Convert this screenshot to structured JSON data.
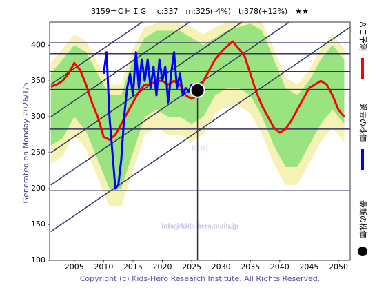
{
  "chart_data": {
    "type": "line",
    "title": "3159=ＣＨＩＧ　 c:337　m:325(-4%)　t:378(+12%)　★★",
    "side_label": "Generated on Monday 2026/1/5.",
    "watermarks": [
      "KIRI",
      "info@kids-hero.main.jp"
    ],
    "copyright": "Copyright (c) Kids-Hero Research Institute. All Rights Reserved.",
    "xlim": [
      2000.8,
      2052
    ],
    "ylim": [
      100,
      432
    ],
    "xticks": [
      2005,
      2010,
      2015,
      2020,
      2025,
      2030,
      2035,
      2040,
      2045,
      2050
    ],
    "yticks": [
      100,
      150,
      200,
      250,
      300,
      350,
      400
    ],
    "grid": false,
    "hlines": [
      403,
      388,
      363,
      338,
      283,
      197
    ],
    "trend_lines": [
      {
        "x": [
          2001,
          2052
        ],
        "y": [
          140,
          425
        ]
      },
      {
        "x": [
          2001,
          2052
        ],
        "y": [
          205,
          490
        ]
      },
      {
        "x": [
          2001,
          2052
        ],
        "y": [
          250,
          535
        ]
      },
      {
        "x": [
          2001,
          2052
        ],
        "y": [
          300,
          585
        ]
      },
      {
        "x": [
          2001,
          2052
        ],
        "y": [
          345,
          630
        ]
      }
    ],
    "bands": [
      {
        "color": "#f5f0a8",
        "x": [
          2001,
          2003,
          2005,
          2007,
          2009,
          2011,
          2013,
          2015,
          2017,
          2019,
          2021,
          2023,
          2025,
          2027,
          2029,
          2031,
          2033,
          2035,
          2037,
          2039,
          2041,
          2043,
          2045,
          2047,
          2049,
          2051
        ],
        "upper": [
          375,
          395,
          415,
          405,
          375,
          345,
          345,
          395,
          425,
          430,
          430,
          430,
          425,
          415,
          425,
          432,
          432,
          432,
          432,
          395,
          355,
          345,
          365,
          395,
          415,
          395
        ],
        "lower": [
          235,
          245,
          275,
          255,
          215,
          175,
          175,
          225,
          275,
          285,
          275,
          275,
          265,
          275,
          305,
          315,
          315,
          305,
          275,
          235,
          205,
          205,
          235,
          265,
          285,
          265
        ]
      },
      {
        "color": "#88e078",
        "x": [
          2001,
          2003,
          2005,
          2007,
          2009,
          2011,
          2013,
          2015,
          2017,
          2019,
          2021,
          2023,
          2025,
          2027,
          2029,
          2031,
          2033,
          2035,
          2037,
          2039,
          2041,
          2043,
          2045,
          2047,
          2049,
          2051
        ],
        "upper": [
          360,
          380,
          400,
          390,
          360,
          330,
          330,
          380,
          410,
          420,
          420,
          420,
          410,
          400,
          410,
          420,
          425,
          430,
          420,
          380,
          340,
          330,
          350,
          380,
          400,
          380
        ],
        "lower": [
          260,
          270,
          300,
          280,
          240,
          200,
          200,
          250,
          300,
          310,
          300,
          300,
          290,
          300,
          330,
          340,
          340,
          330,
          300,
          260,
          230,
          230,
          260,
          290,
          310,
          290
        ]
      }
    ],
    "series": [
      {
        "name": "ＡＩ予測",
        "color": "#ff0000",
        "style": "line",
        "x": [
          2001,
          2002,
          2003,
          2004,
          2005,
          2006,
          2007,
          2008,
          2009,
          2010,
          2011,
          2012,
          2013,
          2014,
          2015,
          2016,
          2017,
          2018,
          2019,
          2020,
          2021,
          2022,
          2023,
          2024,
          2025,
          2026,
          2027,
          2028,
          2029,
          2030,
          2031,
          2032,
          2033,
          2034,
          2035,
          2036,
          2037,
          2038,
          2039,
          2040,
          2041,
          2042,
          2043,
          2044,
          2045,
          2046,
          2047,
          2048,
          2049,
          2050,
          2051
        ],
        "values": [
          342,
          345,
          350,
          360,
          375,
          365,
          345,
          320,
          300,
          272,
          268,
          275,
          290,
          305,
          320,
          335,
          345,
          345,
          350,
          350,
          345,
          350,
          345,
          330,
          325,
          330,
          350,
          365,
          380,
          390,
          398,
          405,
          395,
          385,
          360,
          335,
          315,
          300,
          285,
          278,
          283,
          295,
          310,
          325,
          340,
          345,
          350,
          345,
          330,
          310,
          300
        ]
      },
      {
        "name": "過去の株価",
        "color": "#0000ff",
        "style": "line",
        "x": [
          2010,
          2010.5,
          2011,
          2011.5,
          2012,
          2012.5,
          2013,
          2013.5,
          2014,
          2014.5,
          2015,
          2015.5,
          2016,
          2016.5,
          2017,
          2017.5,
          2018,
          2018.5,
          2019,
          2019.5,
          2020,
          2020.5,
          2021,
          2021.5,
          2022,
          2022.5,
          2023,
          2023.5,
          2024,
          2024.5,
          2025,
          2025.5
        ],
        "values": [
          360,
          390,
          300,
          250,
          200,
          205,
          240,
          300,
          340,
          360,
          330,
          390,
          340,
          380,
          350,
          380,
          340,
          370,
          330,
          380,
          350,
          370,
          320,
          360,
          390,
          340,
          360,
          330,
          340,
          335,
          345,
          337
        ]
      },
      {
        "name": "最新の株価",
        "color": "#000000",
        "style": "point",
        "x": [
          2026
        ],
        "values": [
          337
        ]
      }
    ]
  }
}
